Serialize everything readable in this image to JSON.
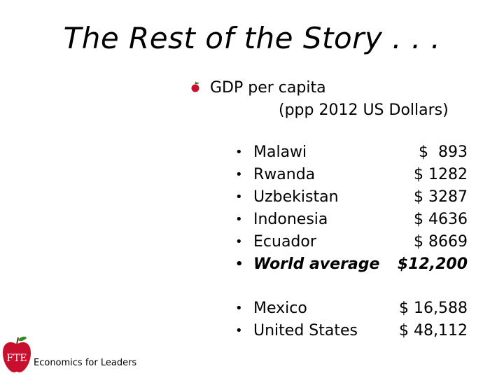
{
  "slide": {
    "title": "The Rest of the Story . . .",
    "heading": "GDP per capita",
    "subheading": "(ppp 2012 US Dollars)",
    "bullet_char": "•",
    "group1": [
      {
        "country": "Malawi",
        "value": "$  893"
      },
      {
        "country": "Rwanda",
        "value": "$ 1282"
      },
      {
        "country": "Uzbekistan",
        "value": "$ 3287"
      },
      {
        "country": "Indonesia",
        "value": "$ 4636"
      },
      {
        "country": "Ecuador",
        "value": "$ 8669"
      },
      {
        "country": "World average",
        "value": "$12,200"
      }
    ],
    "group2": [
      {
        "country": "Mexico",
        "value": "$ 16,588"
      },
      {
        "country": "United States",
        "value": "$ 48,112"
      }
    ]
  },
  "logo": {
    "text": "FTE",
    "color": "#c8102e"
  },
  "footer": {
    "text": "Economics for Leaders"
  }
}
